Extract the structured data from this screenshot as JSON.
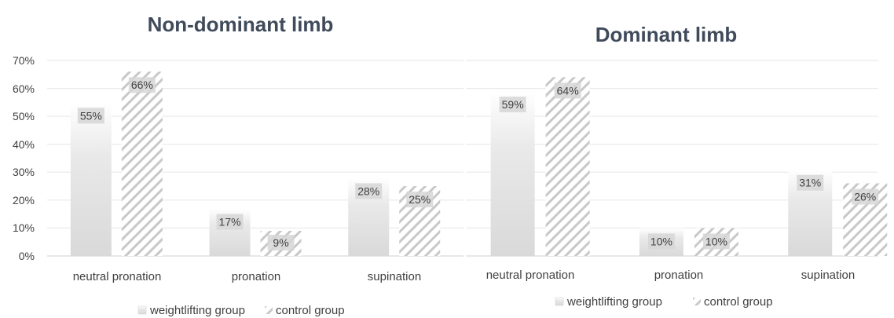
{
  "chart_data": [
    {
      "type": "bar",
      "title": "Non-dominant limb",
      "categories": [
        "neutral pronation",
        "pronation",
        "supination"
      ],
      "series": [
        {
          "name": "weightlifting group",
          "values": [
            55,
            17,
            28
          ],
          "labels": [
            "55%",
            "17%",
            "28%"
          ]
        },
        {
          "name": "control group",
          "values": [
            66,
            9,
            25
          ],
          "labels": [
            "66%",
            "9%",
            "25%"
          ]
        }
      ],
      "yticks": [
        "0%",
        "10%",
        "20%",
        "30%",
        "40%",
        "50%",
        "60%",
        "70%"
      ],
      "ylim": [
        0,
        70
      ],
      "xlabel": "",
      "ylabel": "",
      "grid": true,
      "legend": "bottom"
    },
    {
      "type": "bar",
      "title": "Dominant limb",
      "categories": [
        "neutral pronation",
        "pronation",
        "supination"
      ],
      "series": [
        {
          "name": "weightlifting group",
          "values": [
            59,
            10,
            31
          ],
          "labels": [
            "59%",
            "10%",
            "31%"
          ]
        },
        {
          "name": "control group",
          "values": [
            64,
            10,
            26
          ],
          "labels": [
            "64%",
            "10%",
            "26%"
          ]
        }
      ],
      "ylim": [
        0,
        70
      ],
      "xlabel": "",
      "ylabel": "",
      "grid": true,
      "legend": "bottom"
    }
  ],
  "colors": {
    "bar_fill": "#e4e4e4",
    "hatch": "#c8c8c8",
    "grid": "#e6e6e6",
    "text": "#404040",
    "title": "#3f4a5a"
  }
}
